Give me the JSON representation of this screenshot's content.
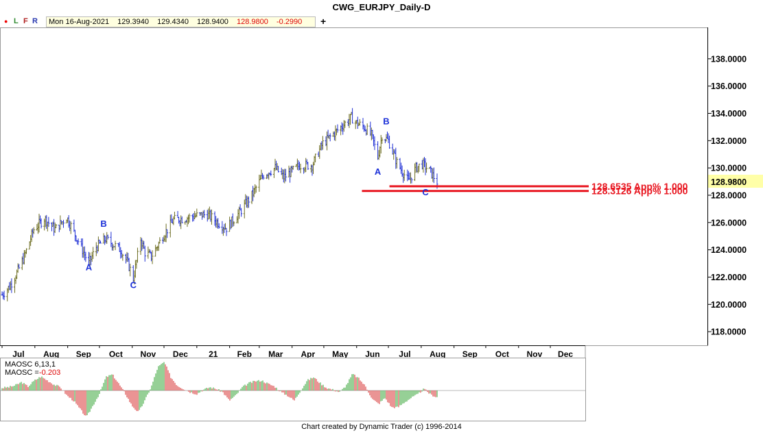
{
  "window": {
    "title": "CWG_EURJPY_Daily-D"
  },
  "toolbar": {
    "dot": "●",
    "l": "L",
    "f": "F",
    "r": "R",
    "date": "Mon 16-Aug-2021",
    "open": "129.3940",
    "high": "129.4340",
    "low": "128.9400",
    "close": "128.9800",
    "change": "-0.2990",
    "add": "+"
  },
  "colors": {
    "up_bar": "#6b6b1e",
    "down_bar": "#1f2fd4",
    "projection": "#e8141e",
    "wave_label": "#1a2fd8",
    "price_box": "#ffffa8",
    "osc_pos": "#2ea02e",
    "osc_neg": "#d42a2a"
  },
  "chart_data": [
    {
      "type": "candlestick-ohlc",
      "title": "CWG_EURJPY_Daily-D",
      "y_ticks": [
        "118.0000",
        "120.0000",
        "122.0000",
        "124.0000",
        "126.0000",
        "128.0000",
        "130.0000",
        "132.0000",
        "134.0000",
        "136.0000",
        "138.0000"
      ],
      "ylim": [
        117.0,
        140.2
      ],
      "x_labels": [
        "Jul",
        "Aug",
        "Sep",
        "Oct",
        "Nov",
        "Dec",
        "21",
        "Feb",
        "Mar",
        "Apr",
        "May",
        "Jun",
        "Jul",
        "Aug",
        "Sep",
        "Oct",
        "Nov",
        "Dec"
      ],
      "last_price": "128.9800",
      "price_path": [
        [
          "2020-07-01",
          120.7
        ],
        [
          "2020-07-08",
          121.3
        ],
        [
          "2020-07-15",
          122.3
        ],
        [
          "2020-07-22",
          123.5
        ],
        [
          "2020-07-31",
          125.5
        ],
        [
          "2020-08-10",
          126.3
        ],
        [
          "2020-08-20",
          125.5
        ],
        [
          "2020-08-31",
          126.4
        ],
        [
          "2020-09-10",
          124.8
        ],
        [
          "2020-09-21",
          123.0
        ],
        [
          "2020-09-28",
          124.2
        ],
        [
          "2020-10-07",
          124.8
        ],
        [
          "2020-10-14",
          124.4
        ],
        [
          "2020-10-21",
          124.0
        ],
        [
          "2020-10-28",
          123.0
        ],
        [
          "2020-11-02",
          121.9
        ],
        [
          "2020-11-09",
          124.8
        ],
        [
          "2020-11-13",
          123.8
        ],
        [
          "2020-11-19",
          123.5
        ],
        [
          "2020-11-30",
          125.0
        ],
        [
          "2020-12-10",
          126.2
        ],
        [
          "2020-12-21",
          126.3
        ],
        [
          "2020-12-31",
          126.5
        ],
        [
          "2021-01-11",
          126.6
        ],
        [
          "2021-01-21",
          126.0
        ],
        [
          "2021-01-29",
          125.6
        ],
        [
          "2021-02-11",
          126.8
        ],
        [
          "2021-02-22",
          128.0
        ],
        [
          "2021-03-05",
          129.5
        ],
        [
          "2021-03-16",
          130.0
        ],
        [
          "2021-03-24",
          129.3
        ],
        [
          "2021-03-31",
          129.7
        ],
        [
          "2021-04-08",
          130.2
        ],
        [
          "2021-04-20",
          130.2
        ],
        [
          "2021-04-30",
          131.8
        ],
        [
          "2021-05-13",
          132.7
        ],
        [
          "2021-05-27",
          133.7
        ],
        [
          "2021-06-01",
          133.3
        ],
        [
          "2021-06-08",
          133.0
        ],
        [
          "2021-06-15",
          132.4
        ],
        [
          "2021-06-21",
          130.8
        ],
        [
          "2021-06-25",
          132.4
        ],
        [
          "2021-07-01",
          132.0
        ],
        [
          "2021-07-09",
          130.4
        ],
        [
          "2021-07-20",
          129.0
        ],
        [
          "2021-07-27",
          130.0
        ],
        [
          "2021-08-02",
          130.3
        ],
        [
          "2021-08-09",
          129.8
        ],
        [
          "2021-08-16",
          128.98
        ]
      ],
      "wave_labels": [
        {
          "text": "A",
          "date": "2020-09-21",
          "y": 122.5
        },
        {
          "text": "B",
          "date": "2020-10-05",
          "y": 125.7
        },
        {
          "text": "C",
          "date": "2020-11-02",
          "y": 121.2
        },
        {
          "text": "A",
          "date": "2021-06-21",
          "y": 129.5
        },
        {
          "text": "B",
          "date": "2021-06-29",
          "y": 133.2
        },
        {
          "text": "C",
          "date": "2021-08-05",
          "y": 128.0
        }
      ],
      "projections": [
        {
          "label": "128.6535 App% 1.000",
          "value": 128.6535,
          "start": "2021-07-02"
        },
        {
          "label": "128.3126 App% 1.000",
          "value": 128.3126,
          "start": "2021-06-06"
        }
      ],
      "grid": true
    },
    {
      "type": "bar",
      "title": "MAOSC 6,13,1",
      "value_label": "MAOSC =",
      "value": "-0.203",
      "ylim": [
        -0.9,
        0.9
      ],
      "values": [
        0.08,
        0.1,
        0.15,
        0.25,
        0.12,
        0.3,
        0.42,
        0.3,
        0.18,
        0.1,
        -0.15,
        -0.3,
        -0.55,
        -0.8,
        -0.45,
        -0.1,
        0.4,
        0.48,
        0.2,
        -0.1,
        -0.45,
        -0.65,
        -0.3,
        0.12,
        0.7,
        0.85,
        0.4,
        0.15,
        0.05,
        -0.05,
        -0.1,
        0.02,
        0.1,
        0.05,
        -0.05,
        -0.3,
        -0.15,
        0.1,
        0.22,
        0.28,
        0.3,
        0.2,
        0.12,
        -0.05,
        -0.15,
        -0.3,
        0.0,
        0.3,
        0.4,
        0.22,
        0.08,
        0.02,
        -0.05,
        0.15,
        0.5,
        0.35,
        0.12,
        -0.25,
        -0.4,
        -0.22,
        -0.5,
        -0.5,
        -0.35,
        -0.22,
        -0.12,
        0.05,
        -0.12,
        -0.2
      ]
    }
  ],
  "footer": {
    "text": "Chart created by Dynamic Trader  (c) 1996-2014"
  }
}
